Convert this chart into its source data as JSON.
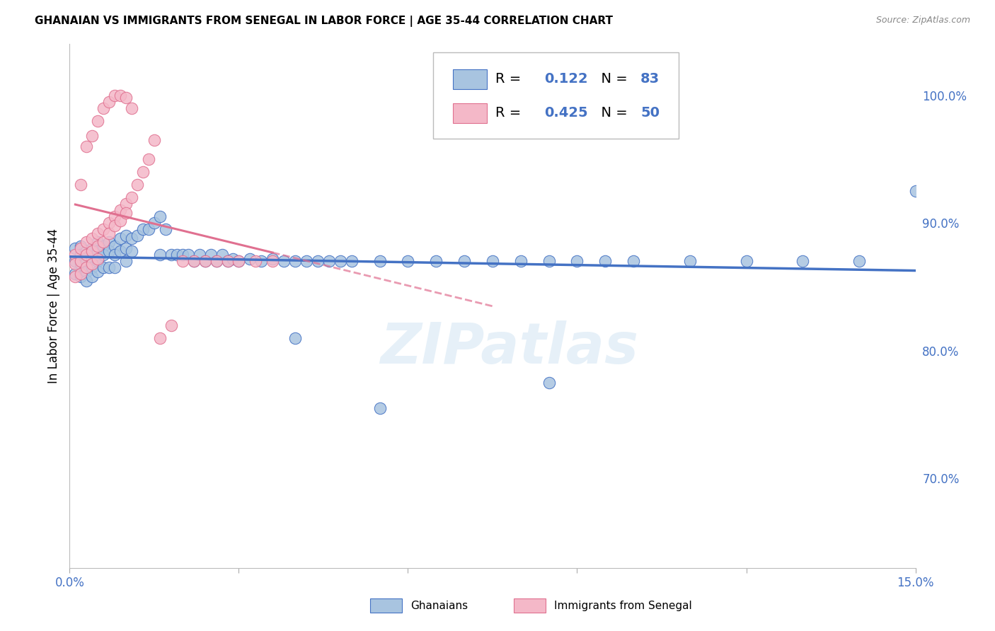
{
  "title": "GHANAIAN VS IMMIGRANTS FROM SENEGAL IN LABOR FORCE | AGE 35-44 CORRELATION CHART",
  "source": "Source: ZipAtlas.com",
  "ylabel": "In Labor Force | Age 35-44",
  "yticks": [
    "70.0%",
    "80.0%",
    "90.0%",
    "100.0%"
  ],
  "ytick_positions": [
    0.7,
    0.8,
    0.9,
    1.0
  ],
  "xtick_positions": [
    0.0,
    0.03,
    0.06,
    0.09,
    0.12,
    0.15
  ],
  "xtick_labels": [
    "0.0%",
    "",
    "",
    "",
    "",
    "15.0%"
  ],
  "xmin": 0.0,
  "xmax": 0.15,
  "ymin": 0.63,
  "ymax": 1.04,
  "watermark": "ZIPatlas",
  "color_ghanaian": "#a8c4e0",
  "color_senegal": "#f4b8c8",
  "color_line_ghanaian": "#4472c4",
  "color_line_senegal": "#e07090",
  "color_r_value": "#4472c4",
  "background_color": "#ffffff",
  "grid_color": "#d8d8d8",
  "ghanaian_x": [
    0.001,
    0.001,
    0.001,
    0.002,
    0.002,
    0.002,
    0.002,
    0.003,
    0.003,
    0.003,
    0.003,
    0.004,
    0.004,
    0.004,
    0.004,
    0.005,
    0.005,
    0.005,
    0.005,
    0.006,
    0.006,
    0.006,
    0.007,
    0.007,
    0.007,
    0.008,
    0.008,
    0.008,
    0.009,
    0.009,
    0.01,
    0.01,
    0.01,
    0.011,
    0.011,
    0.012,
    0.013,
    0.014,
    0.015,
    0.016,
    0.016,
    0.017,
    0.018,
    0.019,
    0.02,
    0.021,
    0.022,
    0.023,
    0.024,
    0.025,
    0.026,
    0.027,
    0.028,
    0.029,
    0.03,
    0.032,
    0.034,
    0.036,
    0.038,
    0.04,
    0.042,
    0.044,
    0.046,
    0.048,
    0.05,
    0.055,
    0.06,
    0.065,
    0.07,
    0.075,
    0.08,
    0.085,
    0.09,
    0.095,
    0.1,
    0.11,
    0.12,
    0.13,
    0.14,
    0.15,
    0.085,
    0.04,
    0.055
  ],
  "ghanaian_y": [
    0.88,
    0.87,
    0.86,
    0.882,
    0.875,
    0.868,
    0.858,
    0.878,
    0.87,
    0.862,
    0.855,
    0.88,
    0.872,
    0.865,
    0.858,
    0.885,
    0.878,
    0.87,
    0.862,
    0.882,
    0.875,
    0.865,
    0.885,
    0.878,
    0.865,
    0.882,
    0.875,
    0.865,
    0.888,
    0.878,
    0.89,
    0.88,
    0.87,
    0.888,
    0.878,
    0.89,
    0.895,
    0.895,
    0.9,
    0.905,
    0.875,
    0.895,
    0.875,
    0.875,
    0.875,
    0.875,
    0.87,
    0.875,
    0.87,
    0.875,
    0.87,
    0.875,
    0.87,
    0.872,
    0.87,
    0.872,
    0.87,
    0.872,
    0.87,
    0.87,
    0.87,
    0.87,
    0.87,
    0.87,
    0.87,
    0.87,
    0.87,
    0.87,
    0.87,
    0.87,
    0.87,
    0.87,
    0.87,
    0.87,
    0.87,
    0.87,
    0.87,
    0.87,
    0.87,
    0.925,
    0.775,
    0.81,
    0.755
  ],
  "senegal_x": [
    0.001,
    0.001,
    0.001,
    0.002,
    0.002,
    0.002,
    0.003,
    0.003,
    0.003,
    0.004,
    0.004,
    0.004,
    0.005,
    0.005,
    0.005,
    0.006,
    0.006,
    0.007,
    0.007,
    0.008,
    0.008,
    0.009,
    0.009,
    0.01,
    0.01,
    0.011,
    0.012,
    0.013,
    0.014,
    0.015,
    0.016,
    0.018,
    0.02,
    0.022,
    0.024,
    0.026,
    0.028,
    0.03,
    0.033,
    0.036,
    0.002,
    0.003,
    0.004,
    0.005,
    0.006,
    0.007,
    0.008,
    0.009,
    0.01,
    0.011
  ],
  "senegal_y": [
    0.875,
    0.868,
    0.858,
    0.88,
    0.87,
    0.86,
    0.885,
    0.875,
    0.865,
    0.888,
    0.878,
    0.868,
    0.892,
    0.882,
    0.872,
    0.895,
    0.885,
    0.9,
    0.892,
    0.905,
    0.898,
    0.91,
    0.902,
    0.915,
    0.908,
    0.92,
    0.93,
    0.94,
    0.95,
    0.965,
    0.81,
    0.82,
    0.87,
    0.87,
    0.87,
    0.87,
    0.87,
    0.87,
    0.87,
    0.87,
    0.93,
    0.96,
    0.968,
    0.98,
    0.99,
    0.995,
    1.0,
    1.0,
    0.998,
    0.99
  ]
}
